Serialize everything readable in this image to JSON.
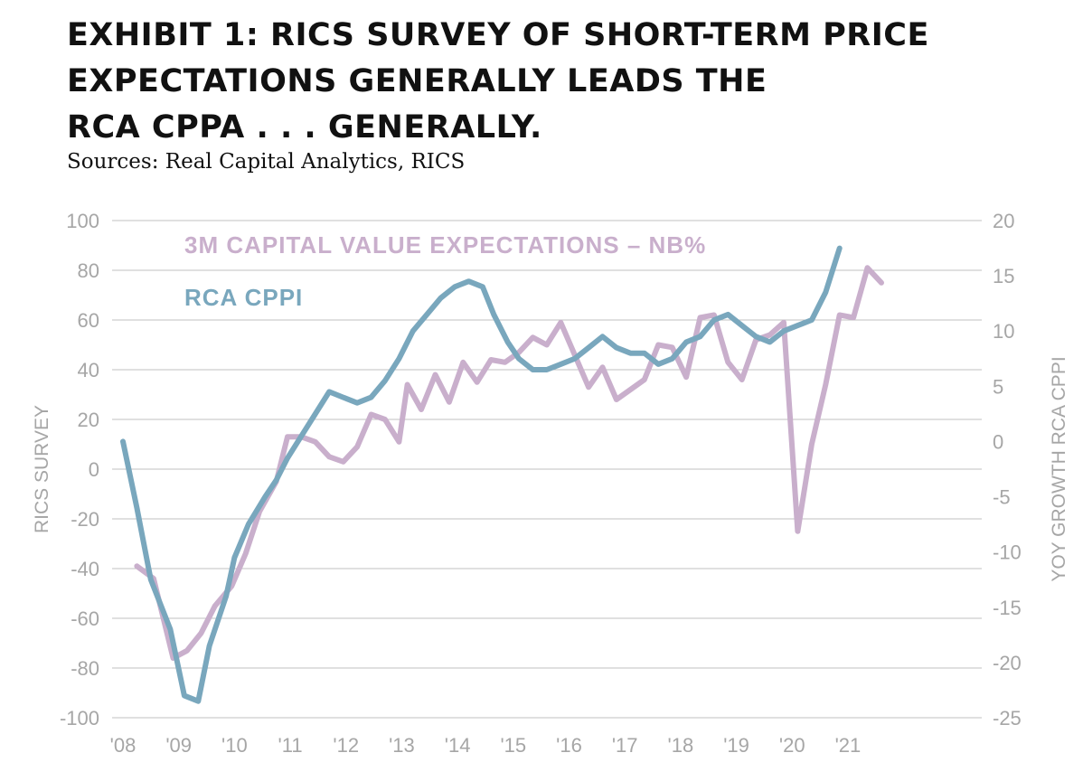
{
  "title_lines": [
    "EXHIBIT 1: RICS SURVEY OF SHORT-TERM PRICE",
    "EXPECTATIONS GENERALLY LEADS THE",
    "RCA CPPA . . . GENERALLY."
  ],
  "source": "Sources: Real Capital Analytics, RICS",
  "colors": {
    "rics": "#c9afcc",
    "rca": "#79a7bd",
    "grid": "#c0c0c0",
    "tick": "#a6a6a6"
  },
  "chart_data": {
    "type": "line",
    "ylabel": "RICS SURVEY",
    "y2label": "YOY GROWTH RCA CPPI",
    "ylim": [
      -100,
      100
    ],
    "y2lim": [
      -25,
      20
    ],
    "xlim": [
      2008,
      2023.4
    ],
    "yticks": [
      "100",
      "80",
      "60",
      "40",
      "20",
      "0",
      "-20",
      "-40",
      "-60",
      "-80",
      "-100"
    ],
    "y2ticks": [
      "20",
      "15",
      "10",
      "5",
      "0",
      "-5",
      "-10",
      "-15",
      "-20",
      "-25"
    ],
    "xticks": [
      "'08",
      "'09",
      "'10",
      "'11",
      "'12",
      "'13",
      "'14",
      "'15",
      "'16",
      "'17",
      "'18",
      "'19",
      "'20",
      "'21"
    ],
    "grid": true,
    "legend": "top-left",
    "series": [
      {
        "name": "3M CAPITAL VALUE EXPECTATIONS – NB%",
        "axis": "left",
        "color": "#c9afcc",
        "points": [
          [
            2008.25,
            -39
          ],
          [
            2008.55,
            -44
          ],
          [
            2008.9,
            -76
          ],
          [
            2009.15,
            -73
          ],
          [
            2009.4,
            -66
          ],
          [
            2009.65,
            -55
          ],
          [
            2009.95,
            -47
          ],
          [
            2010.2,
            -34
          ],
          [
            2010.45,
            -17
          ],
          [
            2010.75,
            -5
          ],
          [
            2010.95,
            13
          ],
          [
            2011.2,
            13
          ],
          [
            2011.45,
            11
          ],
          [
            2011.7,
            5
          ],
          [
            2011.95,
            3
          ],
          [
            2012.2,
            9
          ],
          [
            2012.45,
            22
          ],
          [
            2012.7,
            20
          ],
          [
            2012.95,
            11
          ],
          [
            2013.1,
            34
          ],
          [
            2013.35,
            24
          ],
          [
            2013.6,
            38
          ],
          [
            2013.85,
            27
          ],
          [
            2014.1,
            43
          ],
          [
            2014.35,
            35
          ],
          [
            2014.6,
            44
          ],
          [
            2014.85,
            43
          ],
          [
            2015.1,
            47
          ],
          [
            2015.35,
            53
          ],
          [
            2015.6,
            50
          ],
          [
            2015.85,
            59
          ],
          [
            2016.1,
            46
          ],
          [
            2016.35,
            33
          ],
          [
            2016.6,
            41
          ],
          [
            2016.85,
            28
          ],
          [
            2017.1,
            32
          ],
          [
            2017.35,
            36
          ],
          [
            2017.6,
            50
          ],
          [
            2017.85,
            49
          ],
          [
            2018.1,
            37
          ],
          [
            2018.35,
            61
          ],
          [
            2018.6,
            62
          ],
          [
            2018.85,
            43
          ],
          [
            2019.1,
            36
          ],
          [
            2019.35,
            52
          ],
          [
            2019.6,
            54
          ],
          [
            2019.85,
            59
          ],
          [
            2020.1,
            -25
          ],
          [
            2020.35,
            10
          ],
          [
            2020.6,
            34
          ],
          [
            2020.85,
            62
          ],
          [
            2021.1,
            61
          ],
          [
            2021.35,
            81
          ],
          [
            2021.6,
            75
          ]
        ]
      },
      {
        "name": "RCA CPPI",
        "axis": "right",
        "color": "#79a7bd",
        "points": [
          [
            2008.0,
            0
          ],
          [
            2008.25,
            -6
          ],
          [
            2008.5,
            -12.5
          ],
          [
            2008.85,
            -17
          ],
          [
            2009.1,
            -23
          ],
          [
            2009.35,
            -23.5
          ],
          [
            2009.55,
            -18.5
          ],
          [
            2009.85,
            -14
          ],
          [
            2010.0,
            -10.5
          ],
          [
            2010.25,
            -7.5
          ],
          [
            2010.55,
            -5
          ],
          [
            2010.75,
            -3.5
          ],
          [
            2010.95,
            -1.5
          ],
          [
            2011.2,
            0.5
          ],
          [
            2011.45,
            2.5
          ],
          [
            2011.7,
            4.5
          ],
          [
            2011.95,
            4
          ],
          [
            2012.2,
            3.5
          ],
          [
            2012.45,
            4
          ],
          [
            2012.7,
            5.5
          ],
          [
            2012.95,
            7.5
          ],
          [
            2013.2,
            10
          ],
          [
            2013.45,
            11.5
          ],
          [
            2013.7,
            13
          ],
          [
            2013.95,
            14
          ],
          [
            2014.2,
            14.5
          ],
          [
            2014.45,
            14
          ],
          [
            2014.65,
            11.5
          ],
          [
            2014.9,
            9
          ],
          [
            2015.1,
            7.5
          ],
          [
            2015.35,
            6.5
          ],
          [
            2015.6,
            6.5
          ],
          [
            2015.85,
            7
          ],
          [
            2016.1,
            7.5
          ],
          [
            2016.35,
            8.5
          ],
          [
            2016.6,
            9.5
          ],
          [
            2016.85,
            8.5
          ],
          [
            2017.1,
            8
          ],
          [
            2017.35,
            8
          ],
          [
            2017.6,
            7
          ],
          [
            2017.85,
            7.5
          ],
          [
            2018.1,
            9
          ],
          [
            2018.35,
            9.5
          ],
          [
            2018.6,
            11
          ],
          [
            2018.85,
            11.5
          ],
          [
            2019.1,
            10.5
          ],
          [
            2019.35,
            9.5
          ],
          [
            2019.6,
            9
          ],
          [
            2019.85,
            10
          ],
          [
            2020.1,
            10.5
          ],
          [
            2020.35,
            11
          ],
          [
            2020.6,
            13.5
          ],
          [
            2020.85,
            17.5
          ]
        ]
      }
    ]
  }
}
